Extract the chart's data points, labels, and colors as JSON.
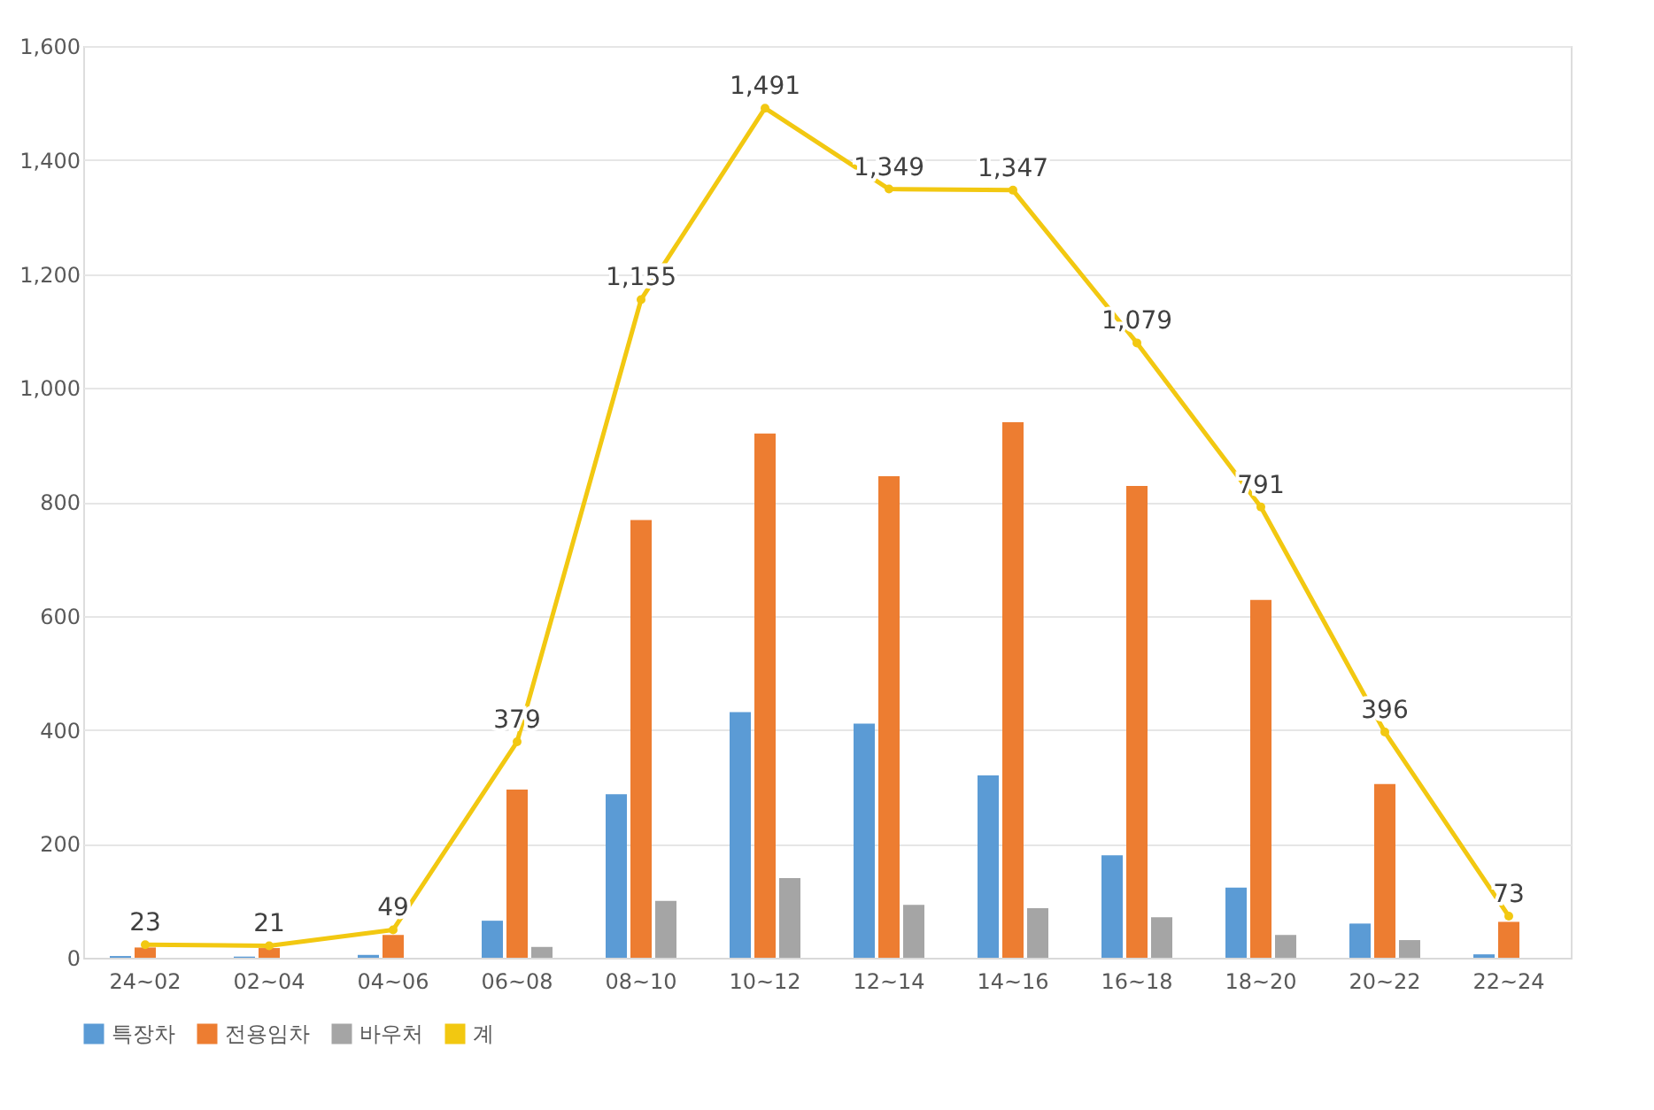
{
  "chart_data": {
    "type": "bar",
    "categories": [
      "24~02",
      "02~04",
      "04~06",
      "06~08",
      "08~10",
      "10~12",
      "12~14",
      "14~16",
      "16~18",
      "18~20",
      "20~22",
      "22~24"
    ],
    "series": [
      {
        "name": "특장차",
        "color": "#5b9bd5",
        "values": [
          3,
          2,
          5,
          65,
          287,
          431,
          411,
          320,
          180,
          123,
          60,
          6
        ]
      },
      {
        "name": "전용임차",
        "color": "#ed7d31",
        "values": [
          18,
          17,
          40,
          295,
          768,
          920,
          845,
          940,
          828,
          628,
          305,
          63
        ]
      },
      {
        "name": "바우처",
        "color": "#a5a5a5",
        "values": [
          null,
          null,
          null,
          19,
          100,
          140,
          93,
          87,
          71,
          40,
          31,
          null
        ]
      },
      {
        "name": "계",
        "type": "line",
        "color": "#f2c811",
        "marker": "circle",
        "values": [
          23,
          21,
          49,
          379,
          1155,
          1491,
          1349,
          1347,
          1079,
          791,
          396,
          73
        ],
        "value_labels": [
          "23",
          "21",
          "49",
          "379",
          "1,155",
          "1,491",
          "1,349",
          "1,347",
          "1,079",
          "791",
          "396",
          "73"
        ]
      }
    ],
    "ylim": [
      0,
      1600
    ],
    "yticks": [
      0,
      200,
      400,
      600,
      800,
      {
        "value": 1000,
        "label": "1,000"
      },
      {
        "value": 1200,
        "label": "1,200"
      },
      {
        "value": 1400,
        "label": "1,400"
      },
      {
        "value": 1600,
        "label": "1,600"
      }
    ],
    "grid": "y",
    "legend": "bottom"
  }
}
